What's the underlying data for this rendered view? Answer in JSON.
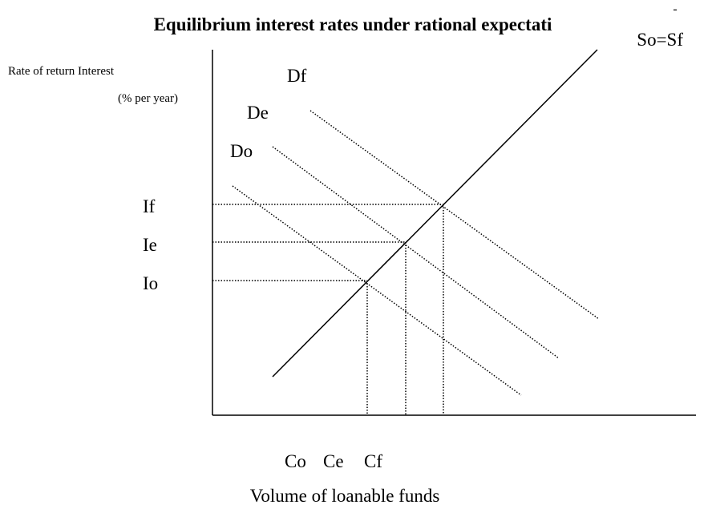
{
  "title": "Equilibrium interest rates under rational expectati",
  "supply_label": {
    "mark": "-",
    "text": "So=Sf"
  },
  "y_axis_label": {
    "line1": "Rate of return Interest",
    "line2": "(% per year)"
  },
  "demand_labels": [
    "Df",
    "De",
    "Do"
  ],
  "rate_labels": [
    "If",
    "Ie",
    "Io"
  ],
  "quantity_labels": [
    "Co",
    "Ce",
    "Cf"
  ],
  "x_axis_label": "Volume of loanable funds"
}
